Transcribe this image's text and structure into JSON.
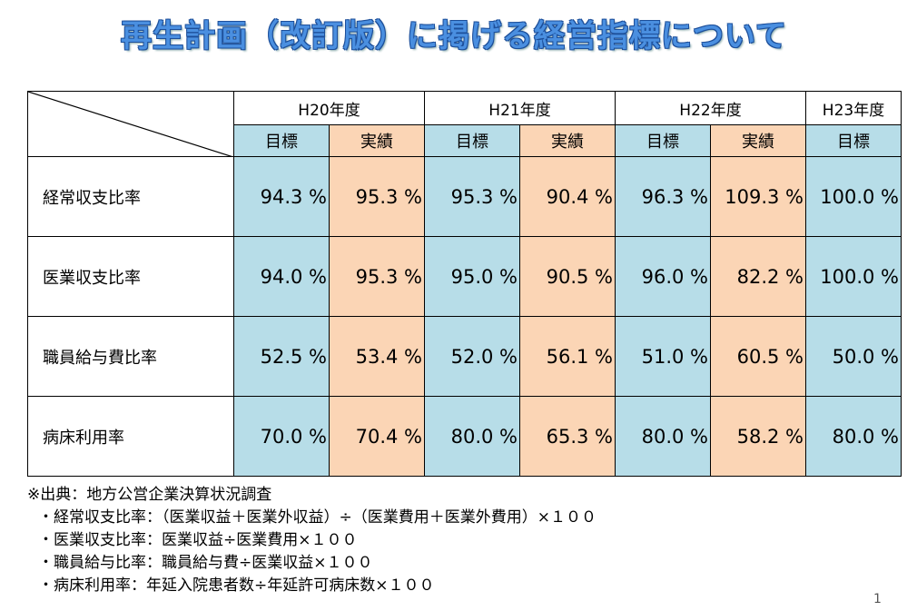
{
  "title": "再生計画（改訂版）に掲げる経営指標について",
  "table": {
    "years": [
      "H20年度",
      "H21年度",
      "H22年度",
      "H23年度"
    ],
    "subheaders": [
      "目標",
      "実績",
      "目標",
      "実績",
      "目標",
      "実績",
      "目標"
    ],
    "rows": [
      {
        "label": "経常収支比率",
        "cells": [
          "94.3 %",
          "95.3 %",
          "95.3 %",
          "90.4 %",
          "96.3 %",
          "109.3 %",
          "100.0 %"
        ]
      },
      {
        "label": "医業収支比率",
        "cells": [
          "94.0 %",
          "95.3 %",
          "95.0 %",
          "90.5 %",
          "96.0 %",
          "82.2 %",
          "100.0 %"
        ]
      },
      {
        "label": "職員給与費比率",
        "cells": [
          "52.5 %",
          "53.4 %",
          "52.0 %",
          "56.1 %",
          "51.0 %",
          "60.5 %",
          "50.0 %"
        ]
      },
      {
        "label": "病床利用率",
        "cells": [
          "70.0 %",
          "70.4 %",
          "80.0 %",
          "65.3 %",
          "80.0 %",
          "58.2 %",
          "80.0 %"
        ]
      }
    ]
  },
  "notes": [
    "※出典：地方公営企業決算状況調査",
    "・経常収支比率：（医業収益＋医業外収益）÷（医業費用＋医業外費用）×１００",
    "・医業収支比率：医業収益÷医業費用×１００",
    "・職員給与比率：職員給与費÷医業収益×１００",
    "・病床利用率：年延入院患者数÷年延許可病床数×１００"
  ],
  "page_number": "1"
}
